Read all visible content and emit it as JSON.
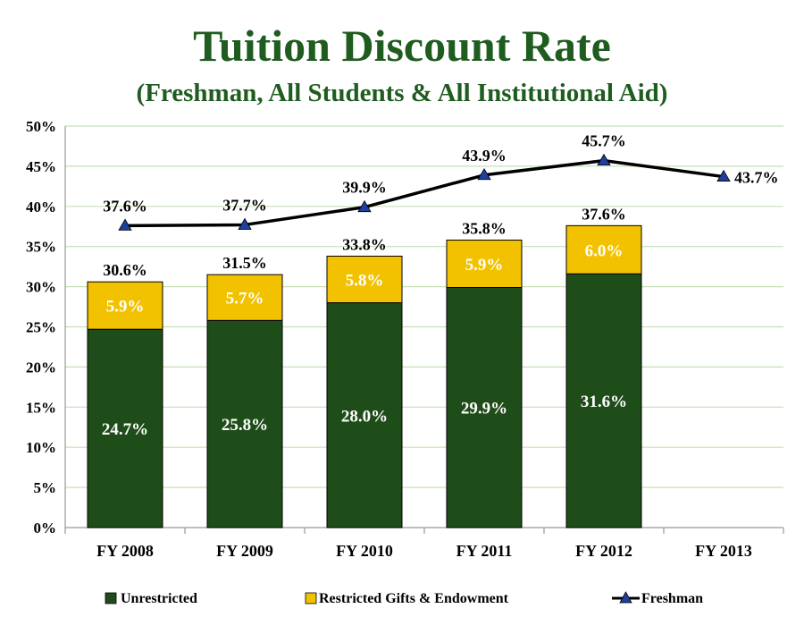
{
  "header": {
    "title": "Tuition Discount Rate",
    "subtitle": "(Freshman, All Students & All Institutional Aid)"
  },
  "colors": {
    "unrestricted": "#1f4d1a",
    "restricted": "#f2c200",
    "freshman_line": "#000000",
    "freshman_marker": "#1f3f9f",
    "grid": "#c6e0b4",
    "title": "#1f5c1f"
  },
  "chart_data": {
    "type": "bar",
    "stacked": true,
    "categories": [
      "FY 2008",
      "FY 2009",
      "FY 2010",
      "FY 2011",
      "FY 2012",
      "FY 2013"
    ],
    "ylim": [
      0,
      50
    ],
    "yticks": [
      "0%",
      "5%",
      "10%",
      "15%",
      "20%",
      "25%",
      "30%",
      "35%",
      "40%",
      "45%",
      "50%"
    ],
    "grid": true,
    "legend_position": "bottom",
    "series": [
      {
        "name": "Unrestricted",
        "kind": "bar",
        "values": [
          24.7,
          25.8,
          28.0,
          29.9,
          31.6,
          null
        ],
        "labels": [
          "24.7%",
          "25.8%",
          "28.0%",
          "29.9%",
          "31.6%",
          ""
        ]
      },
      {
        "name": "Restricted Gifts & Endowment",
        "kind": "bar",
        "values": [
          5.9,
          5.7,
          5.8,
          5.9,
          6.0,
          null
        ],
        "labels": [
          "5.9%",
          "5.7%",
          "5.8%",
          "5.9%",
          "6.0%",
          ""
        ]
      },
      {
        "name": "Freshman",
        "kind": "line",
        "values": [
          37.6,
          37.7,
          39.9,
          43.9,
          45.7,
          43.7
        ],
        "labels": [
          "37.6%",
          "37.7%",
          "39.9%",
          "43.9%",
          "45.7%",
          "43.7%"
        ]
      }
    ],
    "totals": [
      30.6,
      31.5,
      33.8,
      35.8,
      37.6,
      null
    ],
    "total_labels": [
      "30.6%",
      "31.5%",
      "33.8%",
      "35.8%",
      "37.6%",
      ""
    ]
  }
}
